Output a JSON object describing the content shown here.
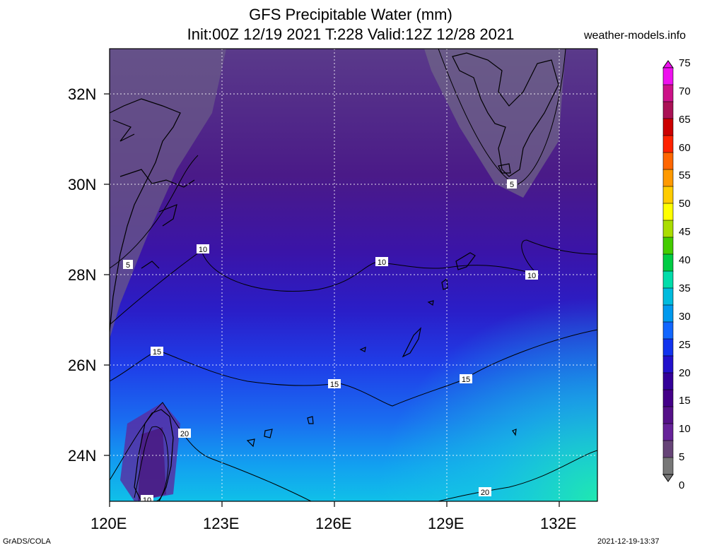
{
  "header": {
    "title_line1": "GFS Precipitable Water (mm)",
    "title_line2": "Init:00Z 12/19 2021 T:228 Valid:12Z 12/28 2021",
    "site": "weather-models.info"
  },
  "axes": {
    "lat_labels": [
      "32N",
      "30N",
      "28N",
      "26N",
      "24N"
    ],
    "lon_labels": [
      "120E",
      "123E",
      "126E",
      "129E",
      "132E"
    ]
  },
  "colorbar": {
    "levels": [
      "75",
      "70",
      "65",
      "60",
      "55",
      "50",
      "45",
      "40",
      "35",
      "30",
      "25",
      "20",
      "15",
      "10",
      "5",
      "0"
    ],
    "colors": [
      "#ee11ee",
      "#cc1188",
      "#aa1155",
      "#cc0000",
      "#ff2200",
      "#ff6600",
      "#ff9900",
      "#ffcc00",
      "#ffff00",
      "#aadd00",
      "#44cc00",
      "#00cc44",
      "#00ddaa",
      "#00bbdd",
      "#0099ee",
      "#1166ff",
      "#1133ee",
      "#2211cc",
      "#330099",
      "#440088",
      "#551188",
      "#662299",
      "#664477",
      "#777777"
    ]
  },
  "contour_labels": [
    "5",
    "5",
    "10",
    "10",
    "10",
    "15",
    "15",
    "15",
    "20",
    "20",
    "10"
  ],
  "footer": {
    "left": "GrADS/COLA",
    "right": "2021-12-19-13:37"
  }
}
